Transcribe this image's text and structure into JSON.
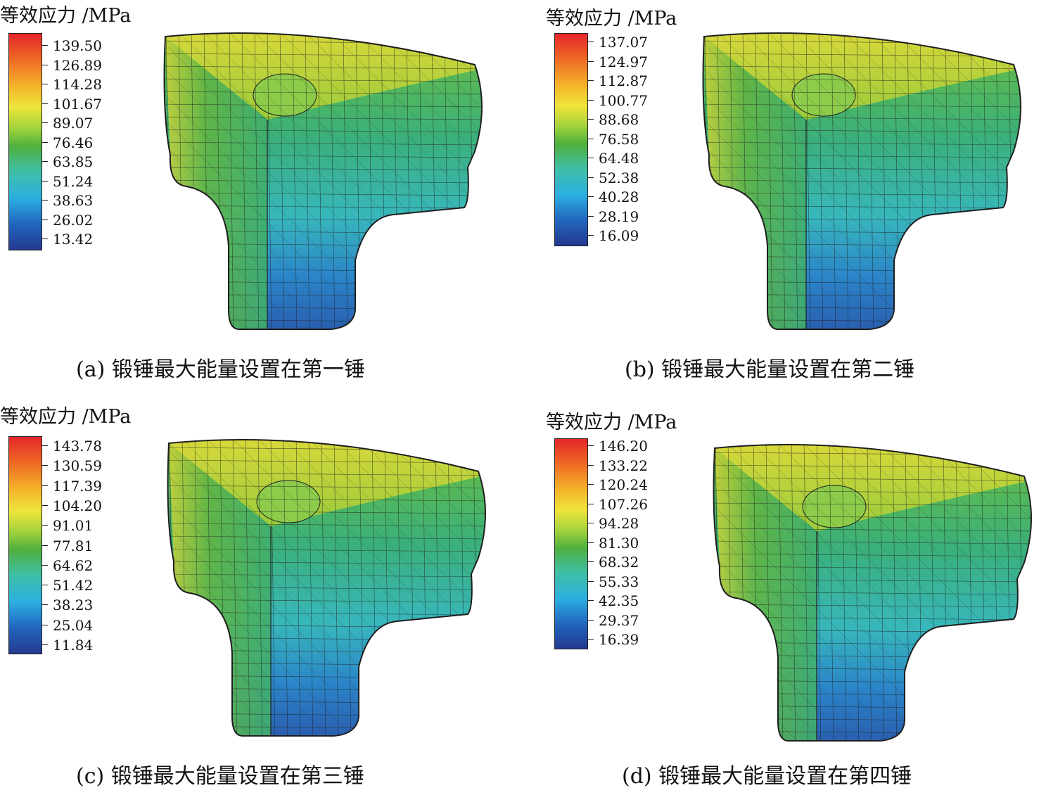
{
  "colors": {
    "high": "#e5262a",
    "mid": "#4fb03e",
    "low": "#233a8e",
    "mesh": "#1f1f1f"
  },
  "panels": [
    {
      "legend_title": "等效应力 /MPa",
      "ticks": [
        "139.50",
        "126.89",
        "114.28",
        "101.67",
        "89.07",
        "76.46",
        "63.85",
        "51.24",
        "38.63",
        "26.02",
        "13.42"
      ],
      "caption": "(a) 锻锤最大能量设置在第一锤"
    },
    {
      "legend_title": "等效应力 /MPa",
      "ticks": [
        "137.07",
        "124.97",
        "112.87",
        "100.77",
        "88.68",
        "76.58",
        "64.48",
        "52.38",
        "40.28",
        "28.19",
        "16.09"
      ],
      "caption": "(b) 锻锤最大能量设置在第二锤"
    },
    {
      "legend_title": "等效应力 /MPa",
      "ticks": [
        "143.78",
        "130.59",
        "117.39",
        "104.20",
        "91.01",
        "77.81",
        "64.62",
        "51.42",
        "38.23",
        "25.04",
        "11.84"
      ],
      "caption": "(c) 锻锤最大能量设置在第三锤"
    },
    {
      "legend_title": "等效应力 /MPa",
      "ticks": [
        "146.20",
        "133.22",
        "120.24",
        "107.26",
        "94.28",
        "81.30",
        "68.32",
        "55.33",
        "42.35",
        "29.37",
        "16.39"
      ],
      "caption": "(d) 锻锤最大能量设置在第四锤"
    }
  ]
}
